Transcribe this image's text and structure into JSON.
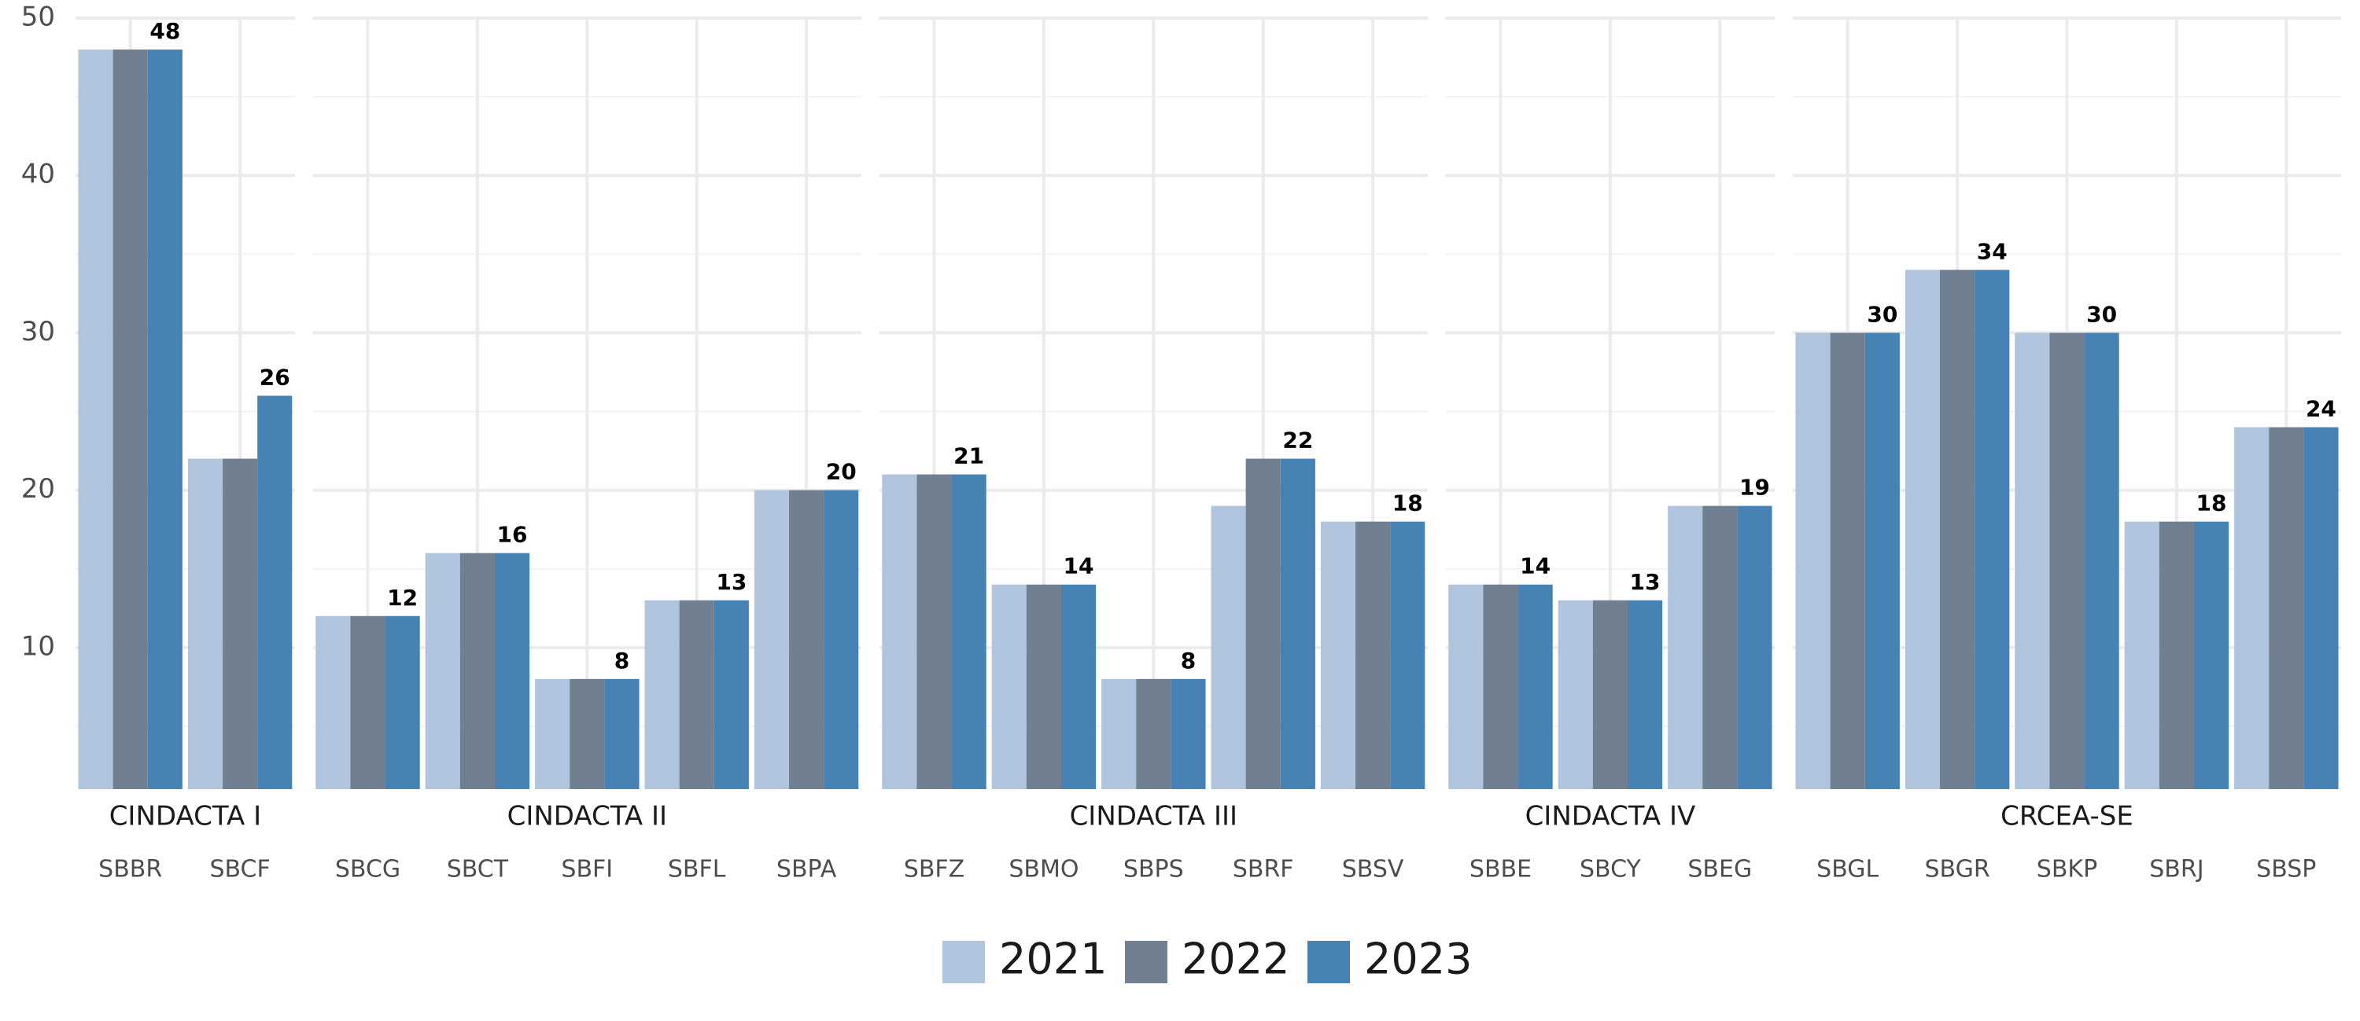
{
  "chart_data": {
    "type": "bar",
    "facets": [
      {
        "title": "CINDACTA I",
        "categories": [
          "SBBR",
          "SBCF"
        ]
      },
      {
        "title": "CINDACTA II",
        "categories": [
          "SBCG",
          "SBCT",
          "SBFI",
          "SBFL",
          "SBPA"
        ]
      },
      {
        "title": "CINDACTA III",
        "categories": [
          "SBFZ",
          "SBMO",
          "SBPS",
          "SBRF",
          "SBSV"
        ]
      },
      {
        "title": "CINDACTA IV",
        "categories": [
          "SBBE",
          "SBCY",
          "SBEG"
        ]
      },
      {
        "title": "CRCEA-SE",
        "categories": [
          "SBGL",
          "SBGR",
          "SBKP",
          "SBRJ",
          "SBSP"
        ]
      }
    ],
    "series": [
      {
        "name": "2021",
        "color": "#b0c4de",
        "show_labels": false,
        "values": [
          [
            48,
            22
          ],
          [
            12,
            16,
            8,
            13,
            20
          ],
          [
            21,
            14,
            8,
            19,
            18
          ],
          [
            14,
            13,
            19
          ],
          [
            30,
            34,
            30,
            18,
            24
          ]
        ]
      },
      {
        "name": "2022",
        "color": "#708090",
        "show_labels": false,
        "values": [
          [
            48,
            22
          ],
          [
            12,
            16,
            8,
            13,
            20
          ],
          [
            21,
            14,
            8,
            22,
            18
          ],
          [
            14,
            13,
            19
          ],
          [
            30,
            34,
            30,
            18,
            24
          ]
        ]
      },
      {
        "name": "2023",
        "color": "#4682b4",
        "show_labels": true,
        "values": [
          [
            48,
            26
          ],
          [
            12,
            16,
            8,
            13,
            20
          ],
          [
            21,
            14,
            8,
            22,
            18
          ],
          [
            14,
            13,
            19
          ],
          [
            30,
            34,
            30,
            18,
            24
          ]
        ]
      }
    ],
    "ylim": [
      1,
      50
    ],
    "yticks": [
      10,
      20,
      30,
      40,
      50
    ],
    "minor_yticks": [
      5,
      15,
      25,
      35,
      45
    ],
    "grid": true,
    "legend": "bottom"
  }
}
